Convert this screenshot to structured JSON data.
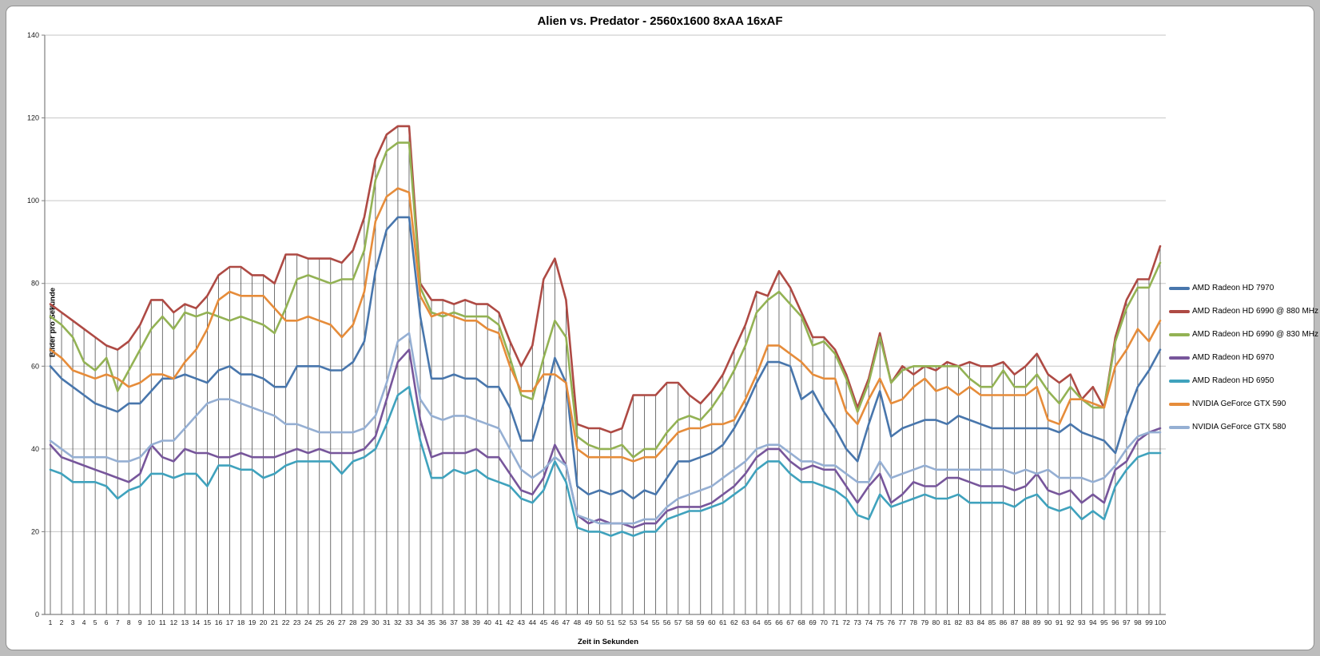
{
  "page": {
    "background_color": "#bdbdbd",
    "chart_background_color": "#ffffff"
  },
  "chart_data": {
    "type": "line",
    "title": "Alien vs. Predator - 2560x1600 8xAA 16xAF",
    "xlabel": "Zeit in Sekunden",
    "ylabel": "Bilder pro Sekunde",
    "ylim": [
      0,
      140
    ],
    "y_tick_interval": 20,
    "y_tick_labels": [
      "0",
      "20",
      "40",
      "60",
      "80",
      "100",
      "120",
      "140"
    ],
    "grid": true,
    "drop_lines": true,
    "legend_position": "right",
    "gridline_color": "#c6c6c6",
    "axis_color": "#808080",
    "drop_line_color": "#4d4d4d",
    "x": [
      1,
      2,
      3,
      4,
      5,
      6,
      7,
      8,
      9,
      10,
      11,
      12,
      13,
      14,
      15,
      16,
      17,
      18,
      19,
      20,
      21,
      22,
      23,
      24,
      25,
      26,
      27,
      28,
      29,
      30,
      31,
      32,
      33,
      34,
      35,
      36,
      37,
      38,
      39,
      40,
      41,
      42,
      43,
      44,
      45,
      46,
      47,
      48,
      49,
      50,
      51,
      52,
      53,
      54,
      55,
      56,
      57,
      58,
      59,
      60,
      61,
      62,
      63,
      64,
      65,
      66,
      67,
      68,
      69,
      70,
      71,
      72,
      73,
      74,
      75,
      76,
      77,
      78,
      79,
      80,
      81,
      82,
      83,
      84,
      85,
      86,
      87,
      88,
      89,
      90,
      91,
      92,
      93,
      94,
      95,
      96,
      97,
      98,
      99,
      100
    ],
    "series": [
      {
        "name": "AMD Radeon HD 7970",
        "color": "#4876ac",
        "values": [
          60,
          57,
          55,
          53,
          51,
          50,
          49,
          51,
          51,
          54,
          57,
          57,
          58,
          57,
          56,
          59,
          60,
          58,
          58,
          57,
          55,
          55,
          60,
          60,
          60,
          59,
          59,
          61,
          66,
          83,
          93,
          96,
          96,
          72,
          57,
          57,
          58,
          57,
          57,
          55,
          55,
          50,
          42,
          42,
          51,
          62,
          56,
          31,
          29,
          30,
          29,
          30,
          28,
          30,
          29,
          33,
          37,
          37,
          38,
          39,
          41,
          45,
          50,
          56,
          61,
          61,
          60,
          52,
          54,
          49,
          45,
          40,
          37,
          46,
          54,
          43,
          45,
          46,
          47,
          47,
          46,
          48,
          47,
          46,
          45,
          45,
          45,
          45,
          45,
          45,
          44,
          46,
          44,
          43,
          42,
          39,
          48,
          55,
          59,
          64
        ]
      },
      {
        "name": "AMD Radeon HD 6990 @ 880 MHz",
        "color": "#ae4a44",
        "values": [
          75,
          73,
          71,
          69,
          67,
          65,
          64,
          66,
          70,
          76,
          76,
          73,
          75,
          74,
          77,
          82,
          84,
          84,
          82,
          82,
          80,
          87,
          87,
          86,
          86,
          86,
          85,
          88,
          96,
          110,
          116,
          118,
          118,
          80,
          76,
          76,
          75,
          76,
          75,
          75,
          73,
          66,
          60,
          65,
          81,
          86,
          76,
          46,
          45,
          45,
          44,
          45,
          53,
          53,
          53,
          56,
          56,
          53,
          51,
          54,
          58,
          64,
          70,
          78,
          77,
          83,
          79,
          73,
          67,
          67,
          64,
          58,
          50,
          57,
          68,
          56,
          60,
          58,
          60,
          59,
          61,
          60,
          61,
          60,
          60,
          61,
          58,
          60,
          63,
          58,
          56,
          58,
          52,
          55,
          50,
          67,
          76,
          81,
          81,
          89
        ]
      },
      {
        "name": "AMD Radeon HD 6990 @ 830 MHz",
        "color": "#93b254",
        "values": [
          72,
          70,
          67,
          61,
          59,
          62,
          54,
          59,
          64,
          69,
          72,
          69,
          73,
          72,
          73,
          72,
          71,
          72,
          71,
          70,
          68,
          74,
          81,
          82,
          81,
          80,
          81,
          81,
          88,
          105,
          112,
          114,
          114,
          79,
          73,
          72,
          73,
          72,
          72,
          72,
          70,
          62,
          53,
          52,
          62,
          71,
          67,
          43,
          41,
          40,
          40,
          41,
          38,
          40,
          40,
          44,
          47,
          48,
          47,
          50,
          54,
          59,
          65,
          73,
          76,
          78,
          75,
          72,
          65,
          66,
          63,
          57,
          49,
          56,
          67,
          56,
          59,
          60,
          60,
          60,
          60,
          60,
          57,
          55,
          55,
          59,
          55,
          55,
          58,
          54,
          51,
          55,
          52,
          50,
          50,
          66,
          74,
          79,
          79,
          85
        ]
      },
      {
        "name": "AMD Radeon HD 6970",
        "color": "#77569b",
        "values": [
          41,
          38,
          37,
          36,
          35,
          34,
          33,
          32,
          34,
          41,
          38,
          37,
          40,
          39,
          39,
          38,
          38,
          39,
          38,
          38,
          38,
          39,
          40,
          39,
          40,
          39,
          39,
          39,
          40,
          43,
          52,
          61,
          64,
          47,
          38,
          39,
          39,
          39,
          40,
          38,
          38,
          34,
          30,
          29,
          33,
          41,
          36,
          24,
          22,
          23,
          22,
          22,
          21,
          22,
          22,
          25,
          26,
          26,
          26,
          27,
          29,
          31,
          34,
          38,
          40,
          40,
          37,
          35,
          36,
          35,
          35,
          31,
          27,
          31,
          34,
          27,
          29,
          32,
          31,
          31,
          33,
          33,
          32,
          31,
          31,
          31,
          30,
          31,
          34,
          30,
          29,
          30,
          27,
          29,
          27,
          35,
          37,
          42,
          44,
          45
        ]
      },
      {
        "name": "AMD Radeon HD 6950",
        "color": "#3fa2bd",
        "values": [
          35,
          34,
          32,
          32,
          32,
          31,
          28,
          30,
          31,
          34,
          34,
          33,
          34,
          34,
          31,
          36,
          36,
          35,
          35,
          33,
          34,
          36,
          37,
          37,
          37,
          37,
          34,
          37,
          38,
          40,
          46,
          53,
          55,
          42,
          33,
          33,
          35,
          34,
          35,
          33,
          32,
          31,
          28,
          27,
          30,
          37,
          32,
          21,
          20,
          20,
          19,
          20,
          19,
          20,
          20,
          23,
          24,
          25,
          25,
          26,
          27,
          29,
          31,
          35,
          37,
          37,
          34,
          32,
          32,
          31,
          30,
          28,
          24,
          23,
          29,
          26,
          27,
          28,
          29,
          28,
          28,
          29,
          27,
          27,
          27,
          27,
          26,
          28,
          29,
          26,
          25,
          26,
          23,
          25,
          23,
          31,
          35,
          38,
          39,
          39
        ]
      },
      {
        "name": "NVIDIA GeForce GTX 590",
        "color": "#e68c3a",
        "values": [
          64,
          62,
          59,
          58,
          57,
          58,
          57,
          55,
          56,
          58,
          58,
          57,
          61,
          64,
          69,
          76,
          78,
          77,
          77,
          77,
          74,
          71,
          71,
          72,
          71,
          70,
          67,
          70,
          78,
          95,
          101,
          103,
          102,
          77,
          72,
          73,
          72,
          71,
          71,
          69,
          68,
          60,
          54,
          54,
          58,
          58,
          56,
          40,
          38,
          38,
          38,
          38,
          37,
          38,
          38,
          41,
          44,
          45,
          45,
          46,
          46,
          47,
          52,
          58,
          65,
          65,
          63,
          61,
          58,
          57,
          57,
          49,
          46,
          52,
          57,
          51,
          52,
          55,
          57,
          54,
          55,
          53,
          55,
          53,
          53,
          53,
          53,
          53,
          55,
          47,
          46,
          52,
          52,
          51,
          50,
          60,
          64,
          69,
          66,
          71
        ]
      },
      {
        "name": "NVIDIA GeForce GTX 580",
        "color": "#95afd3",
        "values": [
          42,
          40,
          38,
          38,
          38,
          38,
          37,
          37,
          38,
          41,
          42,
          42,
          45,
          48,
          51,
          52,
          52,
          51,
          50,
          49,
          48,
          46,
          46,
          45,
          44,
          44,
          44,
          44,
          45,
          48,
          56,
          66,
          68,
          52,
          48,
          47,
          48,
          48,
          47,
          46,
          45,
          40,
          35,
          33,
          35,
          38,
          36,
          24,
          23,
          22,
          22,
          22,
          22,
          23,
          23,
          26,
          28,
          29,
          30,
          31,
          33,
          35,
          37,
          40,
          41,
          41,
          39,
          37,
          37,
          36,
          36,
          34,
          32,
          32,
          37,
          33,
          34,
          35,
          36,
          35,
          35,
          35,
          35,
          35,
          35,
          35,
          34,
          35,
          34,
          35,
          33,
          33,
          33,
          32,
          33,
          36,
          40,
          43,
          44,
          44
        ]
      }
    ]
  }
}
